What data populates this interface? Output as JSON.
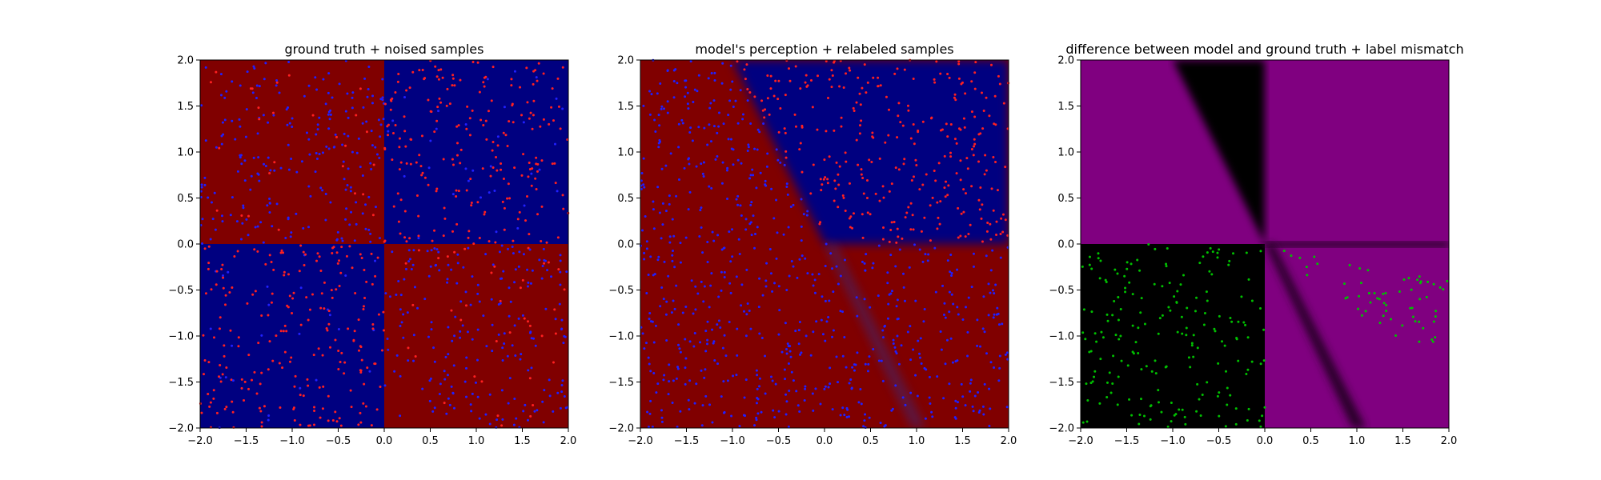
{
  "figure": {
    "background": "#ffffff"
  },
  "chart_data": [
    {
      "type": "heatmap",
      "title": "ground truth + noised samples",
      "xlabel": "",
      "ylabel": "",
      "xlim": [
        -2.0,
        2.0
      ],
      "ylim": [
        -2.0,
        2.0
      ],
      "xticks": [
        "−2.0",
        "−1.5",
        "−1.0",
        "−0.5",
        "0.0",
        "0.5",
        "1.0",
        "1.5",
        "2.0"
      ],
      "yticks": [
        "−2.0",
        "−1.5",
        "−1.0",
        "−0.5",
        "0.0",
        "0.5",
        "1.0",
        "1.5",
        "2.0"
      ],
      "grid": false,
      "regions": [
        {
          "quadrant": "x<0,y>0",
          "color": "#800000"
        },
        {
          "quadrant": "x>0,y>0",
          "color": "#000080"
        },
        {
          "quadrant": "x<0,y<0",
          "color": "#000080"
        },
        {
          "quadrant": "x>0,y<0",
          "color": "#800000"
        }
      ],
      "scatter": {
        "colors": {
          "red": "#ff2020",
          "blue": "#2020ff"
        },
        "red_density": {
          "x<0,y>0": 0.12,
          "x>0,y>0": 0.88,
          "x<0,y<0": 0.88,
          "x>0,y<0": 0.12
        },
        "count_per_quadrant": 250
      }
    },
    {
      "type": "heatmap",
      "title": "model's perception + relabeled samples",
      "xlabel": "",
      "ylabel": "",
      "xlim": [
        -2.0,
        2.0
      ],
      "ylim": [
        -2.0,
        2.0
      ],
      "xticks": [
        "−2.0",
        "−1.5",
        "−1.0",
        "−0.5",
        "0.0",
        "0.5",
        "1.0",
        "1.5",
        "2.0"
      ],
      "yticks": [
        "−2.0",
        "−1.5",
        "−1.0",
        "−0.5",
        "0.0",
        "0.5",
        "1.0",
        "1.5",
        "2.0"
      ],
      "grid": false,
      "decision_boundary": {
        "line": "y = -2.0*x",
        "right_region": "y > 0 → blue, y < 0 → red"
      },
      "colors": {
        "red": "#800000",
        "blue": "#000080"
      },
      "scatter": {
        "colors": {
          "red": "#ff2020",
          "blue": "#2020ff"
        },
        "count": 1000
      }
    },
    {
      "type": "heatmap",
      "title": "difference between model and ground truth + label mismatch",
      "xlabel": "",
      "ylabel": "",
      "xlim": [
        -2.0,
        2.0
      ],
      "ylim": [
        -2.0,
        2.0
      ],
      "xticks": [
        "−2.0",
        "−1.5",
        "−1.0",
        "−0.5",
        "0.0",
        "0.5",
        "1.0",
        "1.5",
        "2.0"
      ],
      "yticks": [
        "−2.0",
        "−1.5",
        "−1.0",
        "−0.5",
        "0.0",
        "0.5",
        "1.0",
        "1.5",
        "2.0"
      ],
      "grid": false,
      "colors": {
        "agree": "#800080",
        "disagree": "#000000",
        "mismatch_points": "#00c000"
      },
      "scatter": {
        "count": 260
      }
    }
  ]
}
